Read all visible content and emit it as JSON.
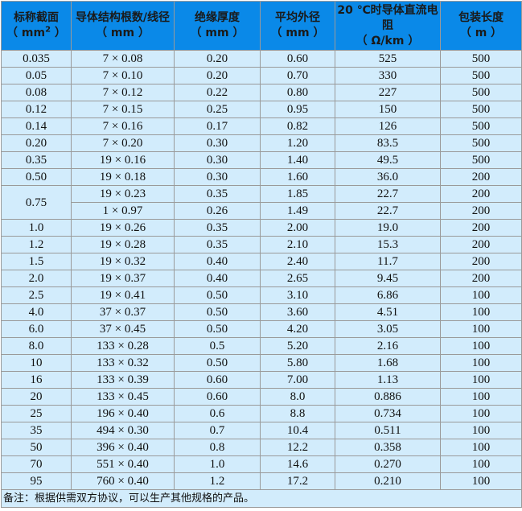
{
  "header": [
    {
      "title": "标称截面",
      "unit": "（ mm",
      "sup": "2",
      "unit_end": " ）"
    },
    {
      "title": "导体结构根数/线径",
      "unit": "（ mm ）"
    },
    {
      "title": "绝缘厚度",
      "unit": "（ mm ）"
    },
    {
      "title": "平均外径",
      "unit": "（ mm ）"
    },
    {
      "title": "20 ℃时导体直流电阻",
      "unit": "（ Ω/km ）"
    },
    {
      "title": "包装长度",
      "unit": "（ m ）"
    }
  ],
  "rows": [
    [
      "0.035",
      "7 × 0.08",
      "0.20",
      "0.60",
      "525",
      "500"
    ],
    [
      "0.05",
      "7 × 0.10",
      "0.20",
      "0.70",
      "330",
      "500"
    ],
    [
      "0.08",
      "7 × 0.12",
      "0.22",
      "0.80",
      "227",
      "500"
    ],
    [
      "0.12",
      "7 × 0.15",
      "0.25",
      "0.95",
      "150",
      "500"
    ],
    [
      "0.14",
      "7 × 0.16",
      "0.17",
      "0.82",
      "126",
      "500"
    ],
    [
      "0.20",
      "7 × 0.20",
      "0.30",
      "1.20",
      "83.5",
      "500"
    ],
    [
      "0.35",
      "19 × 0.16",
      "0.30",
      "1.40",
      "49.5",
      "500"
    ],
    [
      "0.50",
      "19 × 0.18",
      "0.30",
      "1.60",
      "36.0",
      "200"
    ],
    [
      "0.75",
      "19 × 0.23",
      "0.35",
      "1.85",
      "22.7",
      "200"
    ],
    [
      "",
      "1 × 0.97",
      "0.26",
      "1.49",
      "22.7",
      "200"
    ],
    [
      "1.0",
      "19 × 0.26",
      "0.35",
      "2.00",
      "19.0",
      "200"
    ],
    [
      "1.2",
      "19 × 0.28",
      "0.35",
      "2.10",
      "15.3",
      "200"
    ],
    [
      "1.5",
      "19 × 0.32",
      "0.40",
      "2.40",
      "11.7",
      "200"
    ],
    [
      "2.0",
      "19 × 0.37",
      "0.40",
      "2.65",
      "9.45",
      "200"
    ],
    [
      "2.5",
      "19 × 0.41",
      "0.50",
      "3.10",
      "6.86",
      "100"
    ],
    [
      "4.0",
      "37 × 0.37",
      "0.50",
      "3.60",
      "4.51",
      "100"
    ],
    [
      "6.0",
      "37 × 0.45",
      "0.50",
      "4.20",
      "3.05",
      "100"
    ],
    [
      "8.0",
      "133 × 0.28",
      "0.5",
      "5.20",
      "2.16",
      "100"
    ],
    [
      "10",
      "133 × 0.32",
      "0.50",
      "5.80",
      "1.68",
      "100"
    ],
    [
      "16",
      "133 × 0.39",
      "0.60",
      "7.00",
      "1.13",
      "100"
    ],
    [
      "20",
      "133 × 0.45",
      "0.60",
      "8.0",
      "0.886",
      "100"
    ],
    [
      "25",
      "196 × 0.40",
      "0.6",
      "8.8",
      "0.734",
      "100"
    ],
    [
      "35",
      "494 × 0.30",
      "0.7",
      "10.4",
      "0.511",
      "100"
    ],
    [
      "50",
      "396 × 0.40",
      "0.8",
      "12.2",
      "0.358",
      "100"
    ],
    [
      "70",
      "551 × 0.40",
      "1.0",
      "14.6",
      "0.270",
      "100"
    ],
    [
      "95",
      "760 × 0.40",
      "1.2",
      "17.2",
      "0.210",
      "100"
    ]
  ],
  "note": "备注：根据供需双方协议，可以生产其他规格的产品。",
  "colors": {
    "header_bg": "#0a89e8",
    "cell_bg": "#d2ecfc",
    "border": "#9a9a9a"
  }
}
